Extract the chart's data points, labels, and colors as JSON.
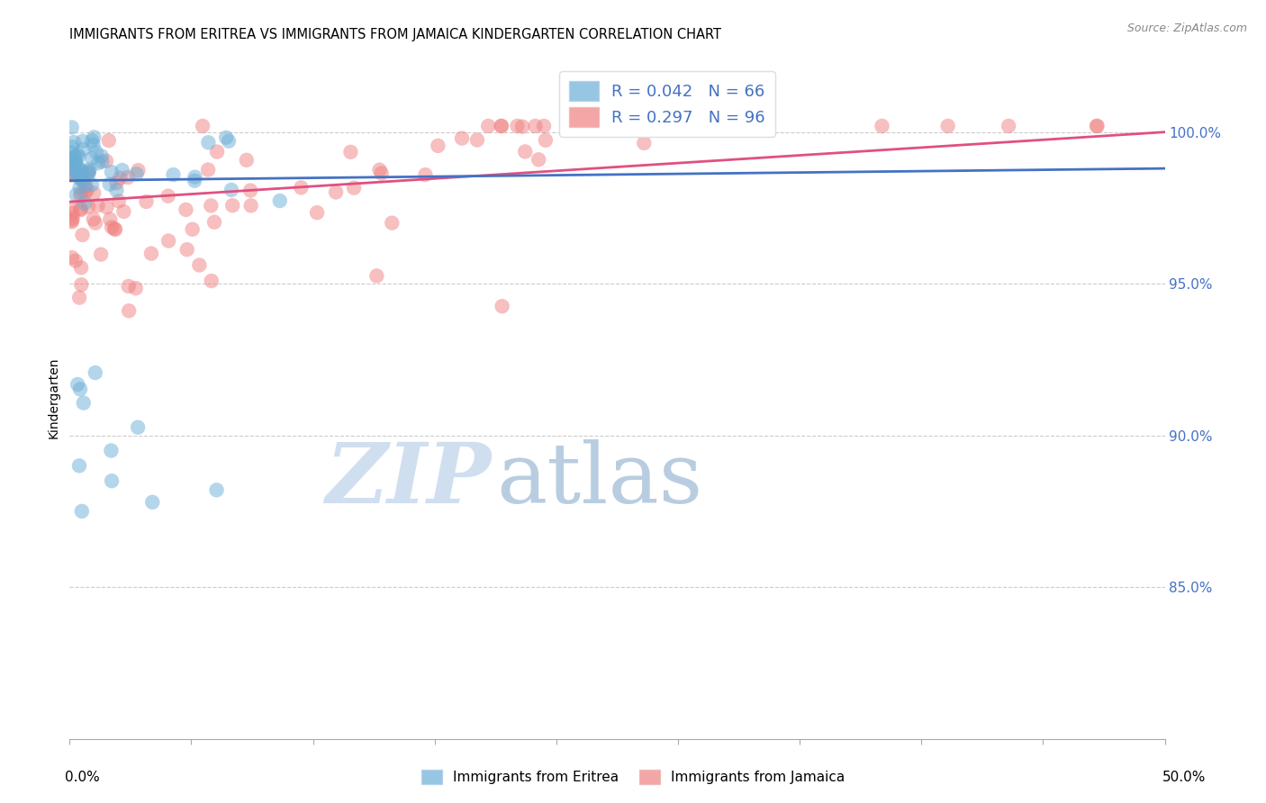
{
  "title": "IMMIGRANTS FROM ERITREA VS IMMIGRANTS FROM JAMAICA KINDERGARTEN CORRELATION CHART",
  "source": "Source: ZipAtlas.com",
  "ylabel": "Kindergarten",
  "R_eritrea": 0.042,
  "N_eritrea": 66,
  "R_jamaica": 0.297,
  "N_jamaica": 96,
  "color_eritrea": "#6baed6",
  "color_jamaica": "#f08080",
  "trendline_eritrea": "#4472c4",
  "trendline_jamaica": "#e05080",
  "background_color": "#ffffff",
  "grid_color": "#cccccc",
  "watermark_zip_color": "#c8d8ee",
  "watermark_atlas_color": "#b8c8e0",
  "xlim": [
    0.0,
    0.5
  ],
  "ylim": [
    0.8,
    1.025
  ],
  "ytick_values": [
    1.0,
    0.95,
    0.9,
    0.85
  ],
  "title_fontsize": 10.5,
  "tick_fontsize": 11,
  "legend_fontsize": 13
}
